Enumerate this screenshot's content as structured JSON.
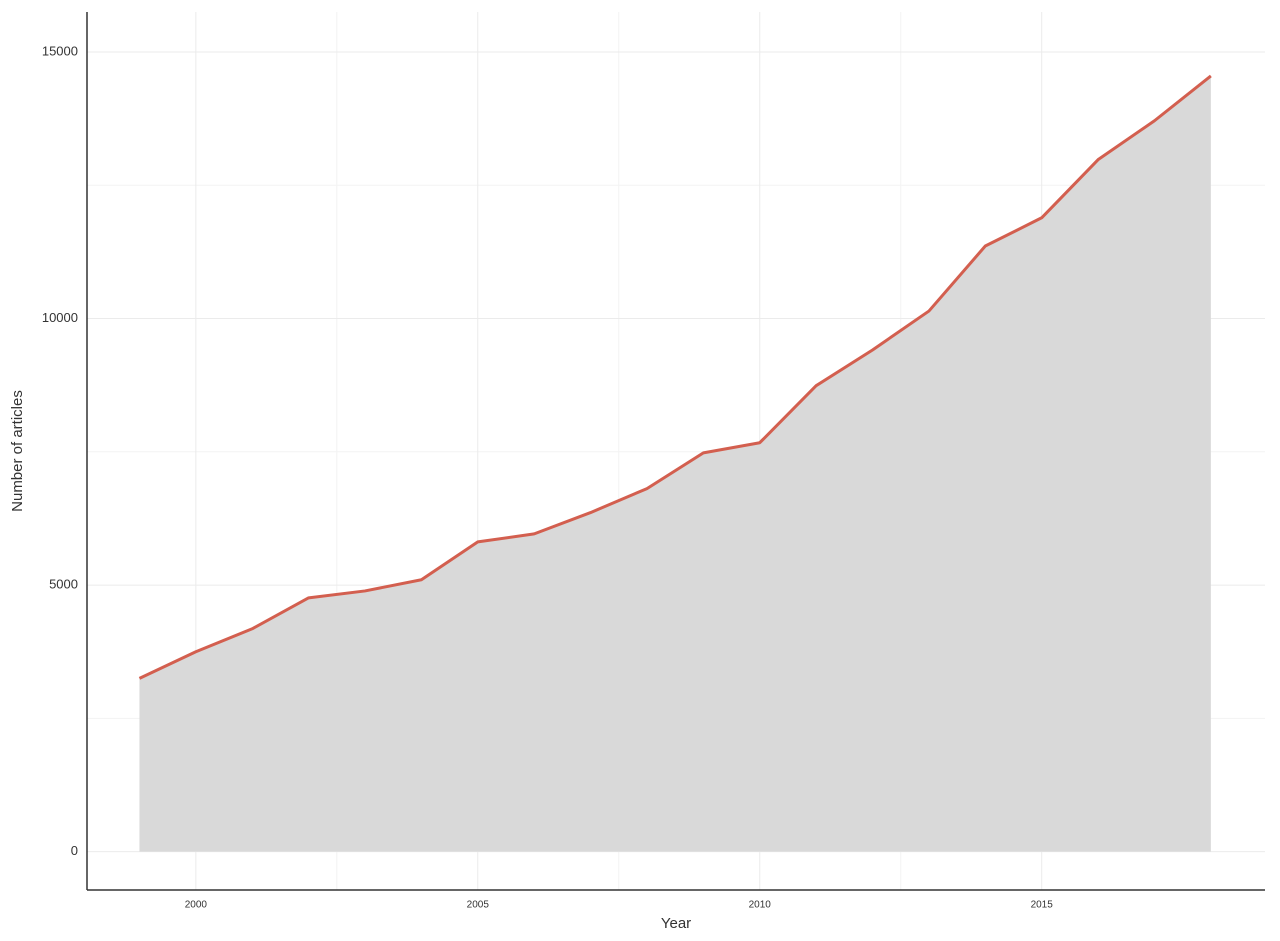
{
  "chart_data": {
    "type": "area",
    "x_label": "Year",
    "y_label": "Number of articles",
    "x": [
      1999,
      2000,
      2001,
      2002,
      2003,
      2004,
      2005,
      2006,
      2007,
      2008,
      2009,
      2010,
      2011,
      2012,
      2013,
      2014,
      2015,
      2016,
      2017,
      2018
    ],
    "values": [
      3250,
      3750,
      4180,
      4760,
      4890,
      5100,
      5810,
      5960,
      6360,
      6810,
      7480,
      7670,
      8740,
      9410,
      10140,
      11360,
      11890,
      12980,
      13710,
      14550
    ],
    "line_color": "#d35f4f",
    "fill_color": "#d9d9d9",
    "xlim": [
      1998.07,
      2018.96
    ],
    "xticks": [
      2000,
      2005,
      2010,
      2015
    ],
    "ylim": [
      -720,
      15750
    ],
    "yticks": [
      0,
      5000,
      10000,
      15000
    ],
    "grid": true
  }
}
